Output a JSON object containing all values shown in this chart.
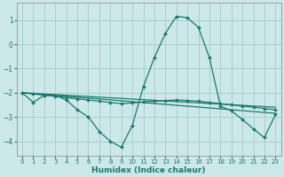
{
  "xlabel": "Humidex (Indice chaleur)",
  "bg_color": "#cde8e8",
  "grid_color": "#aacfcf",
  "line_color": "#1a7a6e",
  "xlim": [
    -0.5,
    23.5
  ],
  "ylim": [
    -4.6,
    1.7
  ],
  "yticks": [
    -4,
    -3,
    -2,
    -1,
    0,
    1
  ],
  "xticks": [
    0,
    1,
    2,
    3,
    4,
    5,
    6,
    7,
    8,
    9,
    10,
    11,
    12,
    13,
    14,
    15,
    16,
    17,
    18,
    19,
    20,
    21,
    22,
    23
  ],
  "lines": [
    {
      "x": [
        0,
        1,
        2,
        3,
        4,
        5,
        6,
        7,
        8,
        9,
        10,
        11,
        12,
        13,
        14,
        15,
        16,
        17,
        18,
        19,
        20,
        21,
        22,
        23
      ],
      "y": [
        -2.0,
        -2.4,
        -2.1,
        -2.1,
        -2.3,
        -2.7,
        -3.0,
        -3.6,
        -4.0,
        -4.25,
        -3.35,
        -1.75,
        -0.55,
        0.45,
        1.15,
        1.1,
        0.7,
        -0.55,
        -2.55,
        -2.75,
        -3.1,
        -3.5,
        -3.85,
        -2.9
      ]
    },
    {
      "x": [
        0,
        1,
        2,
        3,
        4,
        5,
        6,
        7,
        8,
        9,
        10,
        11,
        12,
        13,
        14,
        15,
        16,
        17,
        18,
        19,
        20,
        21,
        22,
        23
      ],
      "y": [
        -2.0,
        -2.05,
        -2.1,
        -2.15,
        -2.2,
        -2.25,
        -2.3,
        -2.35,
        -2.4,
        -2.45,
        -2.42,
        -2.38,
        -2.35,
        -2.32,
        -2.3,
        -2.32,
        -2.35,
        -2.4,
        -2.45,
        -2.5,
        -2.55,
        -2.6,
        -2.65,
        -2.7
      ]
    },
    {
      "x": [
        0,
        23
      ],
      "y": [
        -2.0,
        -2.6
      ]
    },
    {
      "x": [
        0,
        23
      ],
      "y": [
        -2.0,
        -2.85
      ]
    }
  ]
}
